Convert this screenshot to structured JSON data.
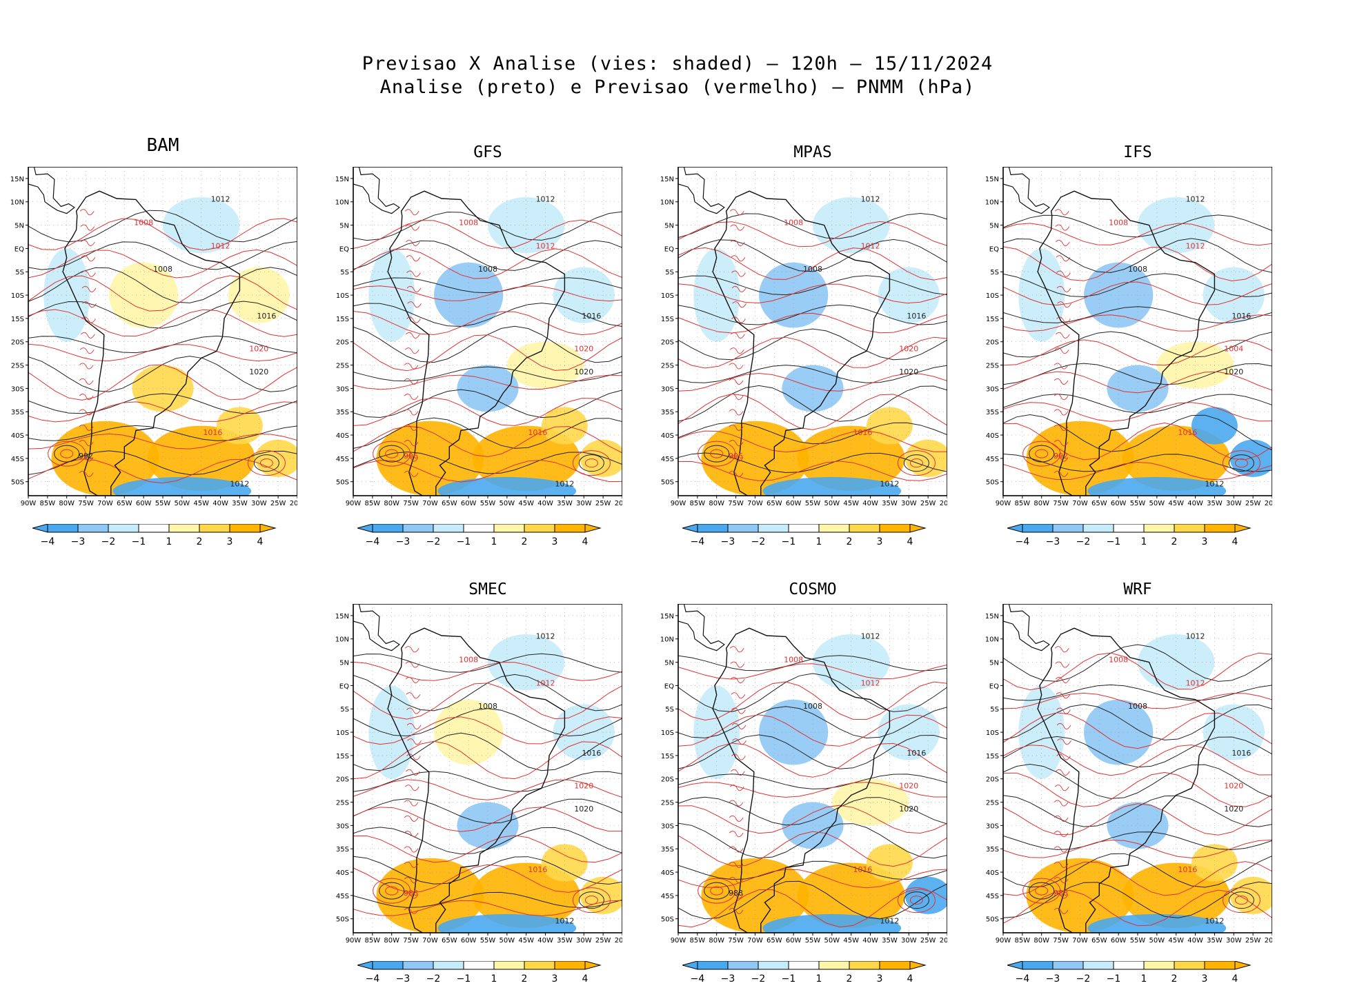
{
  "title": {
    "line1": "Previsao X Analise (vies: shaded) – 120h – 15/11/2024",
    "line2": "Analise (preto) e Previsao (vermelho) – PNMM (hPa)"
  },
  "axes": {
    "lon_labels": [
      "90W",
      "85W",
      "80W",
      "75W",
      "70W",
      "65W",
      "60W",
      "55W",
      "50W",
      "45W",
      "40W",
      "35W",
      "30W",
      "25W",
      "20W"
    ],
    "lat_labels": [
      "15N",
      "10N",
      "5N",
      "EQ",
      "5S",
      "10S",
      "15S",
      "20S",
      "25S",
      "30S",
      "35S",
      "40S",
      "45S",
      "50S"
    ]
  },
  "colorbar": {
    "labels": [
      "−4",
      "−3",
      "−2",
      "−1",
      "1",
      "2",
      "3",
      "4"
    ],
    "colors": [
      "#4aa8ee",
      "#8fc8f4",
      "#c6ecfb",
      "#ffffff",
      "#fff6a8",
      "#ffd84a",
      "#ffb400"
    ]
  },
  "colors": {
    "analysis_line": "#222222",
    "forecast_line": "#e03030",
    "coast": "#111111"
  },
  "panels": [
    {
      "name": "BAM",
      "labels": [
        {
          "t": "1012",
          "c": "k"
        },
        {
          "t": "1008",
          "c": "k"
        },
        {
          "t": "1016",
          "c": "k"
        },
        {
          "t": "1020",
          "c": "k"
        },
        {
          "t": "1012",
          "c": "r"
        },
        {
          "t": "1016",
          "c": "r"
        },
        {
          "t": "1020",
          "c": "r"
        },
        {
          "t": "1008",
          "c": "r"
        },
        {
          "t": "1012",
          "c": "k"
        },
        {
          "t": "992",
          "c": "k"
        }
      ]
    },
    {
      "name": "GFS",
      "labels": [
        {
          "t": "1012",
          "c": "k"
        },
        {
          "t": "1008",
          "c": "k"
        },
        {
          "t": "1016",
          "c": "k"
        },
        {
          "t": "1020",
          "c": "k"
        },
        {
          "t": "1012",
          "c": "r"
        },
        {
          "t": "1016",
          "c": "r"
        },
        {
          "t": "1020",
          "c": "r"
        },
        {
          "t": "1008",
          "c": "r"
        },
        {
          "t": "1012",
          "c": "k"
        },
        {
          "t": "996",
          "c": "r"
        }
      ]
    },
    {
      "name": "MPAS",
      "labels": [
        {
          "t": "1012",
          "c": "k"
        },
        {
          "t": "1008",
          "c": "k"
        },
        {
          "t": "1016",
          "c": "k"
        },
        {
          "t": "1020",
          "c": "k"
        },
        {
          "t": "1012",
          "c": "r"
        },
        {
          "t": "1016",
          "c": "r"
        },
        {
          "t": "1020",
          "c": "r"
        },
        {
          "t": "1008",
          "c": "r"
        },
        {
          "t": "1012",
          "c": "k"
        },
        {
          "t": "996",
          "c": "r"
        }
      ]
    },
    {
      "name": "IFS",
      "labels": [
        {
          "t": "1012",
          "c": "k"
        },
        {
          "t": "1008",
          "c": "k"
        },
        {
          "t": "1016",
          "c": "k"
        },
        {
          "t": "1020",
          "c": "k"
        },
        {
          "t": "1012",
          "c": "r"
        },
        {
          "t": "1016",
          "c": "r"
        },
        {
          "t": "1004",
          "c": "r"
        },
        {
          "t": "1008",
          "c": "r"
        },
        {
          "t": "1012",
          "c": "k"
        },
        {
          "t": "992",
          "c": "r"
        }
      ]
    },
    {
      "name": "SMEC",
      "labels": [
        {
          "t": "1012",
          "c": "k"
        },
        {
          "t": "1008",
          "c": "k"
        },
        {
          "t": "1016",
          "c": "k"
        },
        {
          "t": "1020",
          "c": "k"
        },
        {
          "t": "1012",
          "c": "r"
        },
        {
          "t": "1016",
          "c": "r"
        },
        {
          "t": "1020",
          "c": "r"
        },
        {
          "t": "1008",
          "c": "r"
        },
        {
          "t": "1012",
          "c": "k"
        },
        {
          "t": "988",
          "c": "r"
        }
      ]
    },
    {
      "name": "COSMO",
      "labels": [
        {
          "t": "1012",
          "c": "k"
        },
        {
          "t": "1008",
          "c": "k"
        },
        {
          "t": "1016",
          "c": "k"
        },
        {
          "t": "1020",
          "c": "k"
        },
        {
          "t": "1012",
          "c": "r"
        },
        {
          "t": "1016",
          "c": "r"
        },
        {
          "t": "1020",
          "c": "r"
        },
        {
          "t": "1008",
          "c": "r"
        },
        {
          "t": "1012",
          "c": "k"
        },
        {
          "t": "988",
          "c": "k"
        }
      ]
    },
    {
      "name": "WRF",
      "labels": [
        {
          "t": "1012",
          "c": "k"
        },
        {
          "t": "1008",
          "c": "k"
        },
        {
          "t": "1016",
          "c": "k"
        },
        {
          "t": "1020",
          "c": "k"
        },
        {
          "t": "1012",
          "c": "r"
        },
        {
          "t": "1016",
          "c": "r"
        },
        {
          "t": "1020",
          "c": "r"
        },
        {
          "t": "1008",
          "c": "r"
        },
        {
          "t": "1012",
          "c": "k"
        },
        {
          "t": "988",
          "c": "r"
        }
      ]
    }
  ]
}
